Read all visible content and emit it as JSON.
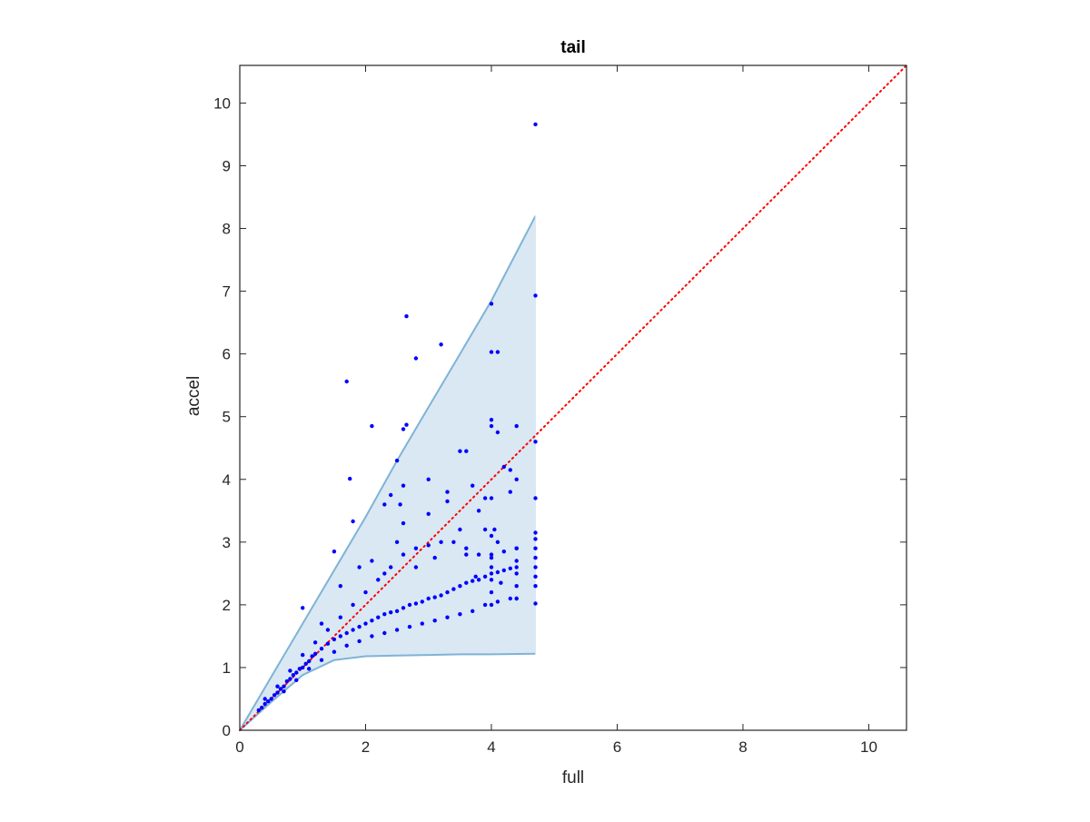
{
  "chart_data": {
    "type": "scatter",
    "title": "tail",
    "xlabel": "full",
    "ylabel": "accel",
    "xlim": [
      0,
      10.6
    ],
    "ylim": [
      0,
      10.6
    ],
    "x_ticks": [
      0,
      2,
      4,
      6,
      8,
      10
    ],
    "y_ticks": [
      0,
      1,
      2,
      3,
      4,
      5,
      6,
      7,
      8,
      9,
      10
    ],
    "x_tick_labels": [
      "0",
      "2",
      "4",
      "6",
      "8",
      "10"
    ],
    "y_tick_labels": [
      "0",
      "1",
      "2",
      "3",
      "4",
      "5",
      "6",
      "7",
      "8",
      "9",
      "10"
    ],
    "grid": false,
    "legend": "none",
    "reference_line": {
      "style": "dotted",
      "color": "#ff0000",
      "points": [
        [
          0,
          0
        ],
        [
          10.6,
          10.6
        ]
      ]
    },
    "envelope": {
      "color": "#7fb3d5",
      "fill": "#d9e8f3",
      "upper": [
        [
          0,
          0
        ],
        [
          0.5,
          0.85
        ],
        [
          1.0,
          1.7
        ],
        [
          1.5,
          2.55
        ],
        [
          2.0,
          3.4
        ],
        [
          2.5,
          4.3
        ],
        [
          3.0,
          5.15
        ],
        [
          3.5,
          6.0
        ],
        [
          4.0,
          6.85
        ],
        [
          4.7,
          8.2
        ]
      ],
      "lower": [
        [
          0,
          0
        ],
        [
          0.5,
          0.45
        ],
        [
          1.0,
          0.88
        ],
        [
          1.5,
          1.12
        ],
        [
          2.0,
          1.18
        ],
        [
          2.5,
          1.19
        ],
        [
          3.0,
          1.2
        ],
        [
          3.5,
          1.21
        ],
        [
          4.0,
          1.21
        ],
        [
          4.7,
          1.22
        ]
      ]
    },
    "series": [
      {
        "color": "#0000ff",
        "points": [
          [
            0.3,
            0.32
          ],
          [
            0.35,
            0.36
          ],
          [
            0.4,
            0.42
          ],
          [
            0.45,
            0.46
          ],
          [
            0.5,
            0.5
          ],
          [
            0.55,
            0.56
          ],
          [
            0.6,
            0.6
          ],
          [
            0.65,
            0.66
          ],
          [
            0.7,
            0.7
          ],
          [
            0.75,
            0.78
          ],
          [
            0.8,
            0.82
          ],
          [
            0.85,
            0.88
          ],
          [
            0.9,
            0.92
          ],
          [
            0.95,
            0.98
          ],
          [
            1.0,
            1.0
          ],
          [
            1.05,
            1.06
          ],
          [
            1.1,
            1.1
          ],
          [
            1.15,
            1.18
          ],
          [
            1.2,
            1.22
          ],
          [
            1.3,
            1.3
          ],
          [
            1.4,
            1.38
          ],
          [
            1.5,
            1.45
          ],
          [
            1.6,
            1.5
          ],
          [
            1.7,
            1.55
          ],
          [
            1.8,
            1.6
          ],
          [
            1.9,
            1.65
          ],
          [
            2.0,
            1.7
          ],
          [
            2.1,
            1.75
          ],
          [
            2.2,
            1.8
          ],
          [
            2.3,
            1.85
          ],
          [
            2.4,
            1.88
          ],
          [
            2.5,
            1.9
          ],
          [
            2.6,
            1.95
          ],
          [
            2.7,
            2.0
          ],
          [
            2.8,
            2.02
          ],
          [
            2.9,
            2.05
          ],
          [
            3.0,
            2.1
          ],
          [
            3.1,
            2.12
          ],
          [
            3.2,
            2.15
          ],
          [
            3.3,
            2.2
          ],
          [
            3.4,
            2.25
          ],
          [
            3.5,
            2.3
          ],
          [
            3.6,
            2.35
          ],
          [
            3.7,
            2.38
          ],
          [
            3.8,
            2.4
          ],
          [
            3.9,
            2.45
          ],
          [
            4.0,
            2.5
          ],
          [
            4.1,
            2.52
          ],
          [
            4.2,
            2.55
          ],
          [
            4.3,
            2.58
          ],
          [
            4.4,
            2.6
          ],
          [
            0.4,
            0.5
          ],
          [
            0.6,
            0.7
          ],
          [
            0.8,
            0.95
          ],
          [
            1.0,
            1.2
          ],
          [
            1.2,
            1.4
          ],
          [
            1.4,
            1.6
          ],
          [
            1.6,
            1.8
          ],
          [
            1.8,
            2.0
          ],
          [
            2.0,
            2.2
          ],
          [
            2.2,
            2.4
          ],
          [
            2.4,
            2.6
          ],
          [
            2.6,
            2.8
          ],
          [
            2.8,
            2.9
          ],
          [
            3.0,
            2.95
          ],
          [
            3.2,
            3.0
          ],
          [
            3.4,
            3.0
          ],
          [
            3.6,
            2.9
          ],
          [
            3.8,
            2.8
          ],
          [
            4.0,
            2.75
          ],
          [
            4.2,
            2.85
          ],
          [
            4.4,
            2.9
          ],
          [
            0.7,
            0.62
          ],
          [
            0.9,
            0.8
          ],
          [
            1.1,
            0.98
          ],
          [
            1.3,
            1.12
          ],
          [
            1.5,
            1.25
          ],
          [
            1.7,
            1.35
          ],
          [
            1.9,
            1.42
          ],
          [
            2.1,
            1.5
          ],
          [
            2.3,
            1.55
          ],
          [
            2.5,
            1.6
          ],
          [
            2.7,
            1.65
          ],
          [
            2.9,
            1.7
          ],
          [
            3.1,
            1.75
          ],
          [
            3.3,
            1.8
          ],
          [
            3.5,
            1.85
          ],
          [
            3.7,
            1.9
          ],
          [
            3.9,
            2.0
          ],
          [
            4.1,
            2.05
          ],
          [
            4.3,
            2.1
          ],
          [
            4.4,
            2.1
          ],
          [
            1.0,
            1.95
          ],
          [
            1.3,
            1.7
          ],
          [
            1.5,
            2.85
          ],
          [
            1.6,
            2.3
          ],
          [
            1.8,
            3.33
          ],
          [
            1.9,
            2.6
          ],
          [
            2.1,
            2.7
          ],
          [
            2.3,
            2.5
          ],
          [
            2.4,
            3.75
          ],
          [
            2.5,
            3.0
          ],
          [
            2.55,
            3.6
          ],
          [
            2.6,
            3.9
          ],
          [
            2.8,
            2.6
          ],
          [
            3.0,
            3.45
          ],
          [
            3.1,
            2.75
          ],
          [
            3.3,
            3.8
          ],
          [
            3.5,
            3.2
          ],
          [
            3.6,
            2.8
          ],
          [
            3.7,
            3.9
          ],
          [
            3.8,
            3.5
          ],
          [
            3.9,
            3.2
          ],
          [
            4.1,
            3.0
          ],
          [
            4.3,
            3.8
          ],
          [
            4.0,
            2.0
          ],
          [
            4.0,
            2.2
          ],
          [
            4.0,
            2.4
          ],
          [
            4.0,
            2.6
          ],
          [
            4.0,
            2.8
          ],
          [
            4.0,
            3.1
          ],
          [
            4.4,
            2.1
          ],
          [
            4.4,
            2.3
          ],
          [
            4.4,
            2.5
          ],
          [
            4.4,
            2.7
          ],
          [
            4.4,
            2.9
          ],
          [
            4.7,
            2.02
          ],
          [
            4.7,
            2.3
          ],
          [
            4.7,
            2.45
          ],
          [
            4.7,
            2.6
          ],
          [
            4.7,
            2.75
          ],
          [
            4.7,
            2.9
          ],
          [
            4.7,
            3.05
          ],
          [
            4.7,
            3.15
          ],
          [
            4.7,
            3.7
          ],
          [
            4.7,
            4.6
          ],
          [
            4.7,
            6.93
          ],
          [
            4.7,
            9.66
          ],
          [
            1.7,
            5.56
          ],
          [
            1.75,
            4.01
          ],
          [
            2.1,
            4.85
          ],
          [
            2.5,
            4.3
          ],
          [
            2.6,
            4.8
          ],
          [
            2.65,
            4.87
          ],
          [
            2.65,
            6.6
          ],
          [
            2.8,
            5.93
          ],
          [
            3.2,
            6.15
          ],
          [
            3.6,
            4.45
          ],
          [
            3.5,
            4.45
          ],
          [
            4.0,
            6.8
          ],
          [
            4.0,
            6.03
          ],
          [
            4.1,
            6.03
          ],
          [
            4.0,
            4.95
          ],
          [
            4.0,
            4.85
          ],
          [
            4.1,
            4.75
          ],
          [
            4.2,
            4.2
          ],
          [
            4.4,
            4.85
          ],
          [
            4.4,
            4.0
          ],
          [
            4.3,
            4.15
          ],
          [
            4.0,
            3.7
          ],
          [
            3.0,
            4.0
          ],
          [
            3.3,
            3.65
          ],
          [
            2.3,
            3.6
          ],
          [
            2.6,
            3.3
          ],
          [
            4.05,
            3.2
          ],
          [
            3.9,
            3.7
          ],
          [
            4.15,
            2.35
          ],
          [
            3.75,
            2.45
          ]
        ]
      }
    ]
  }
}
